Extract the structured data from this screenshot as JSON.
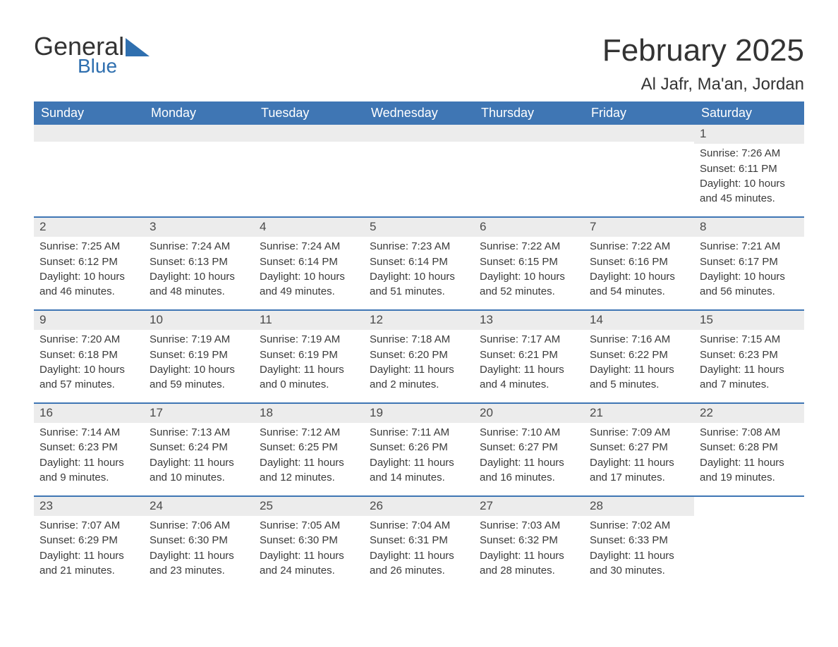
{
  "logo": {
    "word1": "General",
    "word2": "Blue",
    "word1_color": "#333333",
    "word2_color": "#2f6faf",
    "triangle_color": "#2f6faf"
  },
  "title": {
    "month_year": "February 2025",
    "location": "Al Jafr, Ma'an, Jordan",
    "title_fontsize": 44,
    "location_fontsize": 24,
    "title_color": "#333333"
  },
  "calendar": {
    "header_bg": "#3f76b4",
    "header_fg": "#ffffff",
    "row_border_color": "#3f76b4",
    "daynum_bg": "#ececec",
    "text_color": "#3a3a3a",
    "columns": [
      "Sunday",
      "Monday",
      "Tuesday",
      "Wednesday",
      "Thursday",
      "Friday",
      "Saturday"
    ],
    "weeks": [
      [
        null,
        null,
        null,
        null,
        null,
        null,
        {
          "n": "1",
          "sunrise": "Sunrise: 7:26 AM",
          "sunset": "Sunset: 6:11 PM",
          "day1": "Daylight: 10 hours",
          "day2": "and 45 minutes."
        }
      ],
      [
        {
          "n": "2",
          "sunrise": "Sunrise: 7:25 AM",
          "sunset": "Sunset: 6:12 PM",
          "day1": "Daylight: 10 hours",
          "day2": "and 46 minutes."
        },
        {
          "n": "3",
          "sunrise": "Sunrise: 7:24 AM",
          "sunset": "Sunset: 6:13 PM",
          "day1": "Daylight: 10 hours",
          "day2": "and 48 minutes."
        },
        {
          "n": "4",
          "sunrise": "Sunrise: 7:24 AM",
          "sunset": "Sunset: 6:14 PM",
          "day1": "Daylight: 10 hours",
          "day2": "and 49 minutes."
        },
        {
          "n": "5",
          "sunrise": "Sunrise: 7:23 AM",
          "sunset": "Sunset: 6:14 PM",
          "day1": "Daylight: 10 hours",
          "day2": "and 51 minutes."
        },
        {
          "n": "6",
          "sunrise": "Sunrise: 7:22 AM",
          "sunset": "Sunset: 6:15 PM",
          "day1": "Daylight: 10 hours",
          "day2": "and 52 minutes."
        },
        {
          "n": "7",
          "sunrise": "Sunrise: 7:22 AM",
          "sunset": "Sunset: 6:16 PM",
          "day1": "Daylight: 10 hours",
          "day2": "and 54 minutes."
        },
        {
          "n": "8",
          "sunrise": "Sunrise: 7:21 AM",
          "sunset": "Sunset: 6:17 PM",
          "day1": "Daylight: 10 hours",
          "day2": "and 56 minutes."
        }
      ],
      [
        {
          "n": "9",
          "sunrise": "Sunrise: 7:20 AM",
          "sunset": "Sunset: 6:18 PM",
          "day1": "Daylight: 10 hours",
          "day2": "and 57 minutes."
        },
        {
          "n": "10",
          "sunrise": "Sunrise: 7:19 AM",
          "sunset": "Sunset: 6:19 PM",
          "day1": "Daylight: 10 hours",
          "day2": "and 59 minutes."
        },
        {
          "n": "11",
          "sunrise": "Sunrise: 7:19 AM",
          "sunset": "Sunset: 6:19 PM",
          "day1": "Daylight: 11 hours",
          "day2": "and 0 minutes."
        },
        {
          "n": "12",
          "sunrise": "Sunrise: 7:18 AM",
          "sunset": "Sunset: 6:20 PM",
          "day1": "Daylight: 11 hours",
          "day2": "and 2 minutes."
        },
        {
          "n": "13",
          "sunrise": "Sunrise: 7:17 AM",
          "sunset": "Sunset: 6:21 PM",
          "day1": "Daylight: 11 hours",
          "day2": "and 4 minutes."
        },
        {
          "n": "14",
          "sunrise": "Sunrise: 7:16 AM",
          "sunset": "Sunset: 6:22 PM",
          "day1": "Daylight: 11 hours",
          "day2": "and 5 minutes."
        },
        {
          "n": "15",
          "sunrise": "Sunrise: 7:15 AM",
          "sunset": "Sunset: 6:23 PM",
          "day1": "Daylight: 11 hours",
          "day2": "and 7 minutes."
        }
      ],
      [
        {
          "n": "16",
          "sunrise": "Sunrise: 7:14 AM",
          "sunset": "Sunset: 6:23 PM",
          "day1": "Daylight: 11 hours",
          "day2": "and 9 minutes."
        },
        {
          "n": "17",
          "sunrise": "Sunrise: 7:13 AM",
          "sunset": "Sunset: 6:24 PM",
          "day1": "Daylight: 11 hours",
          "day2": "and 10 minutes."
        },
        {
          "n": "18",
          "sunrise": "Sunrise: 7:12 AM",
          "sunset": "Sunset: 6:25 PM",
          "day1": "Daylight: 11 hours",
          "day2": "and 12 minutes."
        },
        {
          "n": "19",
          "sunrise": "Sunrise: 7:11 AM",
          "sunset": "Sunset: 6:26 PM",
          "day1": "Daylight: 11 hours",
          "day2": "and 14 minutes."
        },
        {
          "n": "20",
          "sunrise": "Sunrise: 7:10 AM",
          "sunset": "Sunset: 6:27 PM",
          "day1": "Daylight: 11 hours",
          "day2": "and 16 minutes."
        },
        {
          "n": "21",
          "sunrise": "Sunrise: 7:09 AM",
          "sunset": "Sunset: 6:27 PM",
          "day1": "Daylight: 11 hours",
          "day2": "and 17 minutes."
        },
        {
          "n": "22",
          "sunrise": "Sunrise: 7:08 AM",
          "sunset": "Sunset: 6:28 PM",
          "day1": "Daylight: 11 hours",
          "day2": "and 19 minutes."
        }
      ],
      [
        {
          "n": "23",
          "sunrise": "Sunrise: 7:07 AM",
          "sunset": "Sunset: 6:29 PM",
          "day1": "Daylight: 11 hours",
          "day2": "and 21 minutes."
        },
        {
          "n": "24",
          "sunrise": "Sunrise: 7:06 AM",
          "sunset": "Sunset: 6:30 PM",
          "day1": "Daylight: 11 hours",
          "day2": "and 23 minutes."
        },
        {
          "n": "25",
          "sunrise": "Sunrise: 7:05 AM",
          "sunset": "Sunset: 6:30 PM",
          "day1": "Daylight: 11 hours",
          "day2": "and 24 minutes."
        },
        {
          "n": "26",
          "sunrise": "Sunrise: 7:04 AM",
          "sunset": "Sunset: 6:31 PM",
          "day1": "Daylight: 11 hours",
          "day2": "and 26 minutes."
        },
        {
          "n": "27",
          "sunrise": "Sunrise: 7:03 AM",
          "sunset": "Sunset: 6:32 PM",
          "day1": "Daylight: 11 hours",
          "day2": "and 28 minutes."
        },
        {
          "n": "28",
          "sunrise": "Sunrise: 7:02 AM",
          "sunset": "Sunset: 6:33 PM",
          "day1": "Daylight: 11 hours",
          "day2": "and 30 minutes."
        },
        null
      ]
    ]
  }
}
